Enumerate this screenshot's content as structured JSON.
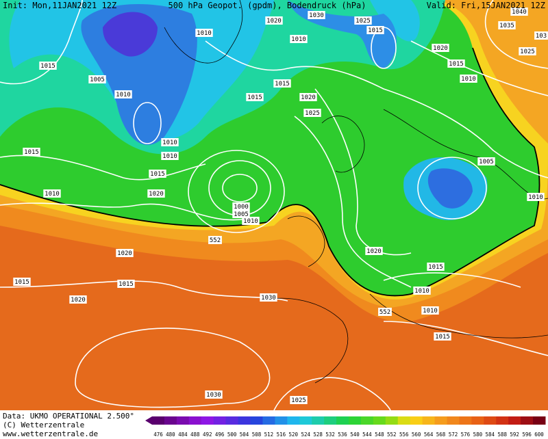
{
  "header": {
    "init": "Init: Mon,11JAN2021 12Z",
    "title": "500 hPa Geopot. (gpdm), Bodendruck (hPa)",
    "valid": "Valid: Fri,15JAN2021 12Z"
  },
  "isobar_labels": [
    "1030",
    "1020",
    "1025",
    "1015",
    "1010",
    "1010",
    "1020",
    "1035",
    "1040",
    "1025",
    "103",
    "1015",
    "1005",
    "1010",
    "1015",
    "1015",
    "1020",
    "1025",
    "1015",
    "1010",
    "1010",
    "1010",
    "1015",
    "1005",
    "1015",
    "1010",
    "1020",
    "1010",
    "1000",
    "1005",
    "1010",
    "1020",
    "1020",
    "1015",
    "1015",
    "1015",
    "1020",
    "1030",
    "1010",
    "1010",
    "1015",
    "1030",
    "1025"
  ],
  "contour_labels": [
    "552",
    "552"
  ],
  "colorbar": {
    "labels": [
      476,
      480,
      484,
      488,
      492,
      496,
      500,
      504,
      508,
      512,
      516,
      520,
      524,
      528,
      532,
      536,
      540,
      544,
      548,
      552,
      556,
      560,
      564,
      568,
      572,
      576,
      580,
      584,
      588,
      592,
      596,
      600
    ]
  },
  "footer": {
    "data": "Data: UKMO OPERATIONAL 2.500°",
    "copyright": "(C) Wetterzentrale",
    "url": "www.wetterzentrale.de"
  }
}
